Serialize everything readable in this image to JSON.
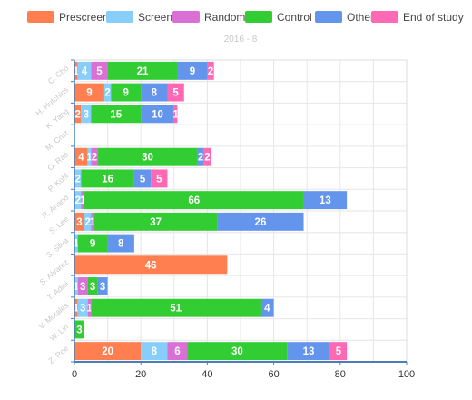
{
  "chart_data": {
    "type": "bar",
    "orientation": "horizontal",
    "stacked": true,
    "title": "2016 - 8",
    "xlim": [
      0,
      100
    ],
    "x_ticks": [
      "0",
      "20",
      "40",
      "60",
      "80",
      "100"
    ],
    "grid": true,
    "legend_position": "top",
    "categories": [
      "C. Cho",
      "H. Hutchins",
      "K. Yang",
      "M. Cruz",
      "O. Rao",
      "P. Kohl",
      "R. Anand",
      "S. Lee",
      "S. Silva",
      "S. Alvarez",
      "T. Adjei",
      "V. Morales",
      "W. Lin",
      "Z. Roe"
    ],
    "series": [
      {
        "name": "Prescreen",
        "color": "#ff7f50",
        "values": [
          1,
          9,
          2,
          0,
          4,
          0,
          0,
          3,
          0,
          46,
          0,
          1,
          0,
          20
        ]
      },
      {
        "name": "Screen",
        "color": "#87cefa",
        "values": [
          4,
          2,
          3,
          0,
          1,
          2,
          2,
          2,
          1,
          0,
          1,
          3,
          0,
          8
        ]
      },
      {
        "name": "Random",
        "color": "#da70d6",
        "values": [
          5,
          0,
          0,
          0,
          2,
          0,
          1,
          1,
          0,
          0,
          3,
          1,
          0,
          6
        ]
      },
      {
        "name": "Control",
        "color": "#32cd32",
        "values": [
          21,
          9,
          15,
          0,
          30,
          16,
          66,
          37,
          9,
          0,
          3,
          51,
          3,
          30
        ]
      },
      {
        "name": "Other",
        "color": "#6495ed",
        "values": [
          9,
          8,
          10,
          0,
          2,
          5,
          13,
          26,
          8,
          0,
          3,
          4,
          0,
          13
        ]
      },
      {
        "name": "End of study",
        "color": "#ff69b4",
        "values": [
          2,
          5,
          1,
          0,
          2,
          5,
          0,
          0,
          0,
          0,
          0,
          0,
          0,
          5
        ]
      }
    ]
  }
}
